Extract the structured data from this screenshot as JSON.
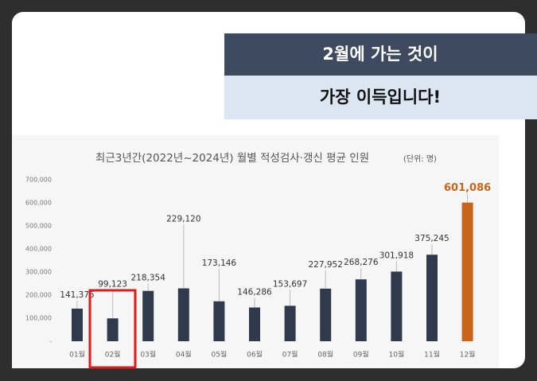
{
  "banner": {
    "line1": "2월에 가는 것이",
    "line2": "가장 이득입니다!"
  },
  "chart_data": {
    "type": "bar",
    "title": "최근3년간(2022년~2024년) 월별 적성검사·갱신 평균 인원",
    "subtitle": "(단위: 명)",
    "categories": [
      "01월",
      "02월",
      "03월",
      "04월",
      "05월",
      "06월",
      "07월",
      "08월",
      "09월",
      "10월",
      "11월",
      "12월"
    ],
    "values": [
      141375,
      99123,
      218354,
      229120,
      173146,
      146286,
      153697,
      227952,
      268276,
      301918,
      375245,
      601086
    ],
    "value_labels": [
      "141,375",
      "99,123",
      "218,354",
      "229,120",
      "173,146",
      "146,286",
      "153,697",
      "227,952",
      "268,276",
      "301,918",
      "375,245",
      "601,086"
    ],
    "colors": [
      "#2f3a4d",
      "#2f3a4d",
      "#2f3a4d",
      "#2f3a4d",
      "#2f3a4d",
      "#2f3a4d",
      "#2f3a4d",
      "#2f3a4d",
      "#2f3a4d",
      "#2f3a4d",
      "#2f3a4d",
      "#c8651b"
    ],
    "ylim": [
      0,
      700000
    ],
    "yticks": [
      {
        "value": 0,
        "label": "-"
      },
      {
        "value": 100000,
        "label": "100,000"
      },
      {
        "value": 200000,
        "label": "200,000"
      },
      {
        "value": 300000,
        "label": "300,000"
      },
      {
        "value": 400000,
        "label": "400,000"
      },
      {
        "value": 500000,
        "label": "500,000"
      },
      {
        "value": 600000,
        "label": "600,000"
      },
      {
        "value": 700000,
        "label": "700,000"
      }
    ],
    "grid": false
  }
}
